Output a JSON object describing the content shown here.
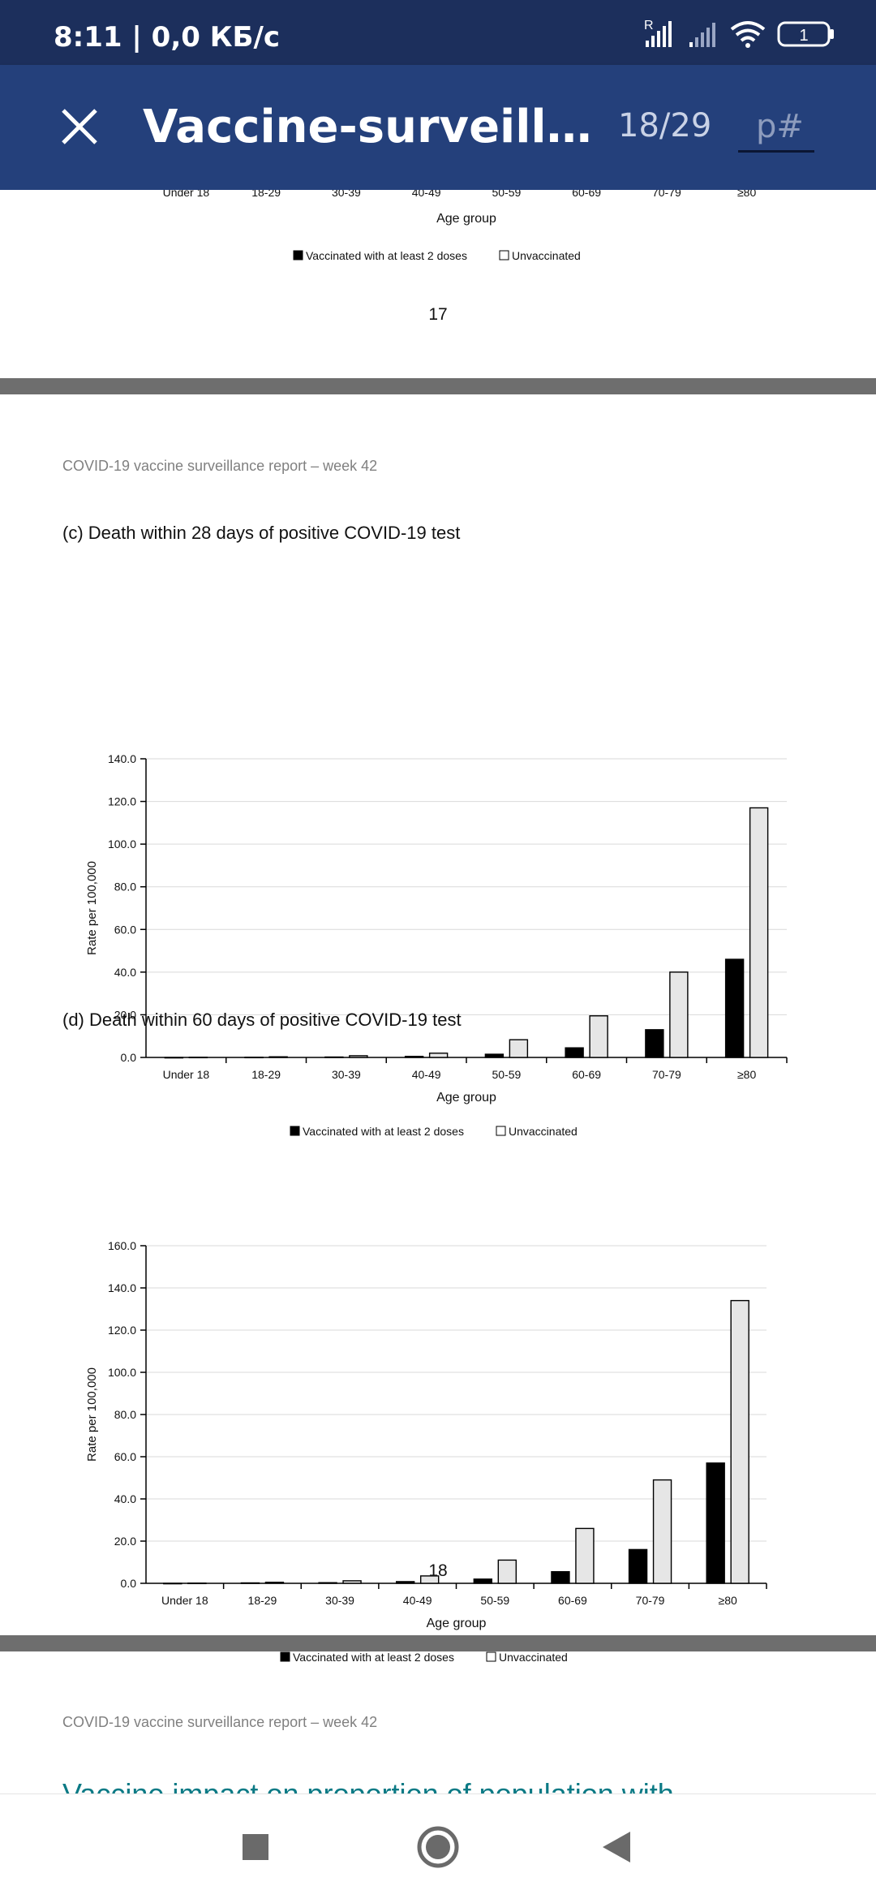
{
  "status_bar": {
    "time": "8:11",
    "network_speed": "| 0,0 КБ/с",
    "roaming_label": "R",
    "battery_level": "1",
    "icons": [
      "signal-roaming-icon",
      "signal-icon",
      "wifi-icon",
      "battery-icon"
    ]
  },
  "app_bar": {
    "close_icon": "close-icon",
    "title": "Vaccine-surveillance…",
    "page_indicator": "18/29",
    "page_input_placeholder": "p#"
  },
  "colors": {
    "status_bar": "#1c2f5c",
    "app_bar": "#24407b",
    "vaccinated_bar": "#000000",
    "unvaccinated_bar": "#e6e6e6",
    "separator": "#6e6e6e",
    "teal_heading": "#0b7a85"
  },
  "document": {
    "prev_page": {
      "tick_labels": [
        "Under 18",
        "18-29",
        "30-39",
        "40-49",
        "50-59",
        "60-69",
        "70-79",
        "≥80"
      ],
      "xlabel": "Age group",
      "legend": [
        "Vaccinated with at least 2 doses",
        "Unvaccinated"
      ],
      "page_number": "17"
    },
    "page18": {
      "running_header": "COVID-19 vaccine surveillance report – week 42",
      "page_number": "18"
    },
    "page19": {
      "running_header": "COVID-19 vaccine surveillance report – week 42",
      "heading_partial": "Vaccine impact on proportion of population with"
    }
  },
  "chart_data": [
    {
      "type": "bar",
      "title": "(c) Death within 28 days of positive COVID-19 test",
      "categories": [
        "Under 18",
        "18-29",
        "30-39",
        "40-49",
        "50-59",
        "60-69",
        "70-79",
        "≥80"
      ],
      "series": [
        {
          "name": "Vaccinated with at least 2 doses",
          "values": [
            0.0,
            0.1,
            0.2,
            0.5,
            1.5,
            4.5,
            13.0,
            46.0
          ]
        },
        {
          "name": "Unvaccinated",
          "values": [
            0.1,
            0.3,
            0.8,
            2.0,
            8.3,
            19.5,
            40.0,
            117.0
          ]
        }
      ],
      "xlabel": "Age group",
      "ylabel": "Rate per 100,000",
      "ylim": [
        0,
        140
      ],
      "yticks": [
        "0.0",
        "20.0",
        "40.0",
        "60.0",
        "80.0",
        "100.0",
        "120.0",
        "140.0"
      ],
      "grid": true,
      "legend": "bottom"
    },
    {
      "type": "bar",
      "title": "(d) Death within 60 days of positive COVID-19 test",
      "categories": [
        "Under 18",
        "18-29",
        "30-39",
        "40-49",
        "50-59",
        "60-69",
        "70-79",
        "≥80"
      ],
      "series": [
        {
          "name": "Vaccinated with at least 2 doses",
          "values": [
            0.0,
            0.2,
            0.3,
            0.8,
            2.0,
            5.5,
            16.0,
            57.0
          ]
        },
        {
          "name": "Unvaccinated",
          "values": [
            0.1,
            0.5,
            1.2,
            3.5,
            11.0,
            26.0,
            49.0,
            134.0
          ]
        }
      ],
      "xlabel": "Age group",
      "ylabel": "Rate per 100,000",
      "ylim": [
        0,
        160
      ],
      "yticks": [
        "0.0",
        "20.0",
        "40.0",
        "60.0",
        "80.0",
        "100.0",
        "120.0",
        "140.0",
        "160.0"
      ],
      "grid": true,
      "legend": "bottom"
    }
  ]
}
